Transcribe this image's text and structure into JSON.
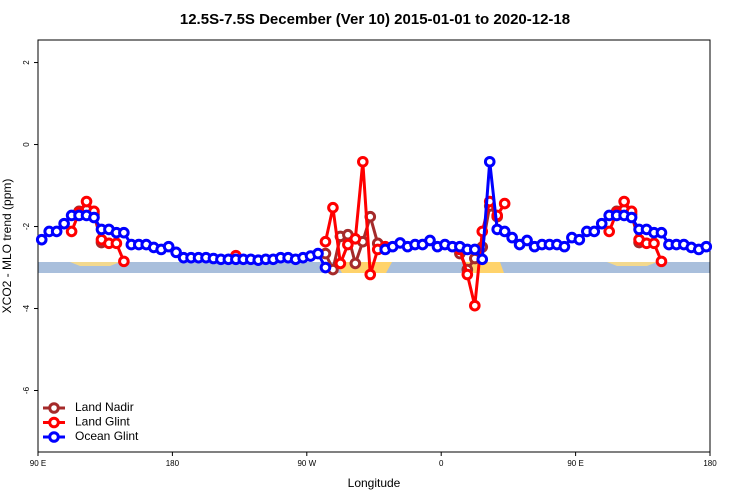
{
  "chart_data": {
    "type": "line",
    "title": "12.5S-7.5S December (Ver 10)   2015-01-01 to 2020-12-18",
    "xlabel": "Longitude",
    "ylabel": "XCO2 - MLO trend (ppm)",
    "xlim": [
      90,
      540
    ],
    "xticks": [
      {
        "value": 90,
        "label": "90 E"
      },
      {
        "value": 180,
        "label": "180"
      },
      {
        "value": 270,
        "label": "90 W"
      },
      {
        "value": 360,
        "label": "0"
      },
      {
        "value": 450,
        "label": "90 E"
      },
      {
        "value": 540,
        "label": "180"
      }
    ],
    "ylim": [
      -7.5,
      2.55
    ],
    "yticks": [
      2,
      0,
      -2,
      -4,
      -6
    ],
    "legend": "bottomleft",
    "series": [
      {
        "name": "Land Nadir",
        "color": "#a52a2a",
        "x": [
          117.5,
          122.5,
          127.5,
          132.5,
          200,
          282.5,
          287.5,
          292.5,
          297.5,
          302.5,
          307.5,
          312.5,
          317.5,
          322.5,
          350,
          372.5,
          377.5,
          382.5,
          387.5,
          392.5,
          397.5,
          430,
          477.5,
          482.5,
          487.5,
          492.5
        ],
        "values": [
          -1.63,
          -1.59,
          -1.7,
          -2.39,
          null,
          -2.66,
          -3.05,
          -2.24,
          -2.2,
          -2.9,
          -2.37,
          -1.76,
          -2.41,
          -2.54,
          null,
          -2.66,
          -3.05,
          -2.78,
          -2.5,
          -1.5,
          -1.76,
          null,
          -1.63,
          -1.59,
          -1.7,
          -2.39
        ]
      },
      {
        "name": "Land Glint",
        "color": "#ff0000",
        "x": [
          112.5,
          117.5,
          122.5,
          127.5,
          132.5,
          137.5,
          142.5,
          147.5,
          185,
          222.5,
          250,
          282.5,
          287.5,
          292.5,
          297.5,
          302.5,
          307.5,
          312.5,
          317.5,
          322.5,
          350,
          372.5,
          377.5,
          382.5,
          387.5,
          392.5,
          397.5,
          402.5,
          430,
          472.5,
          477.5,
          482.5,
          487.5,
          492.5,
          497.5,
          502.5,
          507.5
        ],
        "values": [
          -2.12,
          -1.66,
          -1.39,
          -1.63,
          -2.32,
          -2.41,
          -2.41,
          -2.85,
          null,
          -2.71,
          null,
          -2.37,
          -1.54,
          -2.9,
          -2.44,
          -2.3,
          -0.42,
          -3.17,
          -2.56,
          -2.49,
          null,
          -2.56,
          -3.17,
          -3.93,
          -2.12,
          -1.39,
          -1.73,
          -1.44,
          null,
          -2.12,
          -1.66,
          -1.39,
          -1.63,
          -2.32,
          -2.41,
          -2.41,
          -2.85
        ]
      },
      {
        "name": "Ocean Glint",
        "color": "#0000ff",
        "x": [
          92.5,
          97.5,
          102.5,
          107.5,
          112.5,
          117.5,
          122.5,
          127.5,
          132.5,
          137.5,
          142.5,
          147.5,
          152.5,
          157.5,
          162.5,
          167.5,
          172.5,
          177.5,
          182.5,
          187.5,
          192.5,
          197.5,
          202.5,
          207.5,
          212.5,
          217.5,
          222.5,
          227.5,
          232.5,
          237.5,
          242.5,
          247.5,
          252.5,
          257.5,
          262.5,
          267.5,
          272.5,
          277.5,
          282.5,
          302.5,
          322.5,
          327.5,
          332.5,
          337.5,
          342.5,
          347.5,
          352.5,
          357.5,
          362.5,
          367.5,
          372.5,
          377.5,
          382.5,
          387.5,
          392.5,
          397.5,
          402.5,
          407.5,
          412.5,
          417.5,
          422.5,
          427.5,
          432.5,
          437.5,
          442.5,
          447.5,
          452.5,
          457.5,
          462.5,
          467.5,
          472.5,
          477.5,
          482.5,
          487.5,
          492.5,
          497.5,
          502.5,
          507.5,
          512.5,
          517.5,
          522.5,
          527.5,
          532.5,
          537.5
        ],
        "values": [
          -2.32,
          -2.12,
          -2.12,
          -1.93,
          -1.73,
          -1.73,
          -1.73,
          -1.78,
          -2.07,
          -2.07,
          -2.15,
          -2.15,
          -2.44,
          -2.44,
          -2.44,
          -2.51,
          -2.56,
          -2.49,
          -2.63,
          -2.76,
          -2.76,
          -2.76,
          -2.76,
          -2.78,
          -2.8,
          -2.8,
          -2.8,
          -2.8,
          -2.8,
          -2.82,
          -2.8,
          -2.8,
          -2.76,
          -2.76,
          -2.8,
          -2.76,
          -2.72,
          -2.66,
          -3.0,
          null,
          -2.56,
          -2.49,
          -2.4,
          -2.49,
          -2.44,
          -2.44,
          -2.34,
          -2.49,
          -2.44,
          -2.49,
          -2.49,
          -2.56,
          -2.56,
          -2.8,
          -0.42,
          -2.07,
          -2.12,
          -2.27,
          -2.44,
          -2.34,
          -2.49,
          -2.44,
          -2.44,
          -2.44,
          -2.49,
          -2.27,
          -2.32,
          -2.12,
          -2.12,
          -1.93,
          -1.73,
          -1.73,
          -1.73,
          -1.78,
          -2.07,
          -2.07,
          -2.15,
          -2.15,
          -2.44,
          -2.44,
          -2.44,
          -2.51,
          -2.56,
          -2.49
        ]
      }
    ]
  }
}
